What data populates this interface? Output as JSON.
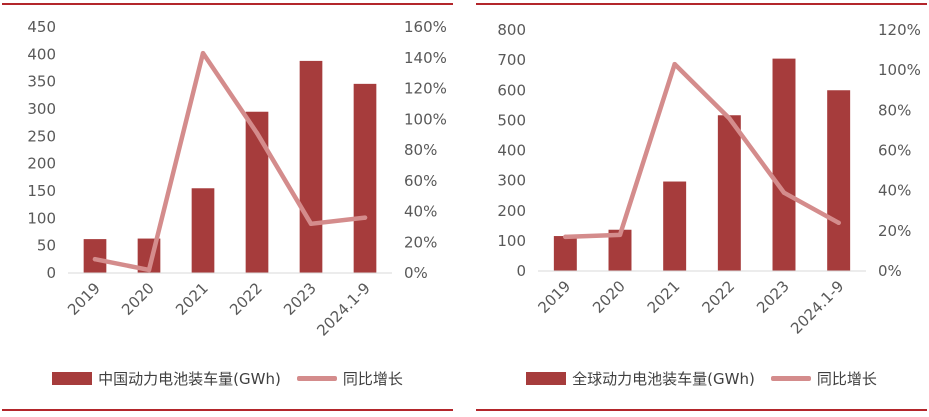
{
  "colors": {
    "bar": "#a63c3c",
    "line": "#d48c8c",
    "rule": "#b3262b",
    "axis": "#d9d9d9",
    "text": "#595959"
  },
  "chart_data": [
    {
      "type": "bar",
      "categories": [
        "2019",
        "2020",
        "2021",
        "2022",
        "2023",
        "2024.1-9"
      ],
      "series": [
        {
          "name": "中国动力电池装车量(GWh)",
          "type": "bar",
          "axis": "left",
          "values": [
            62,
            63,
            155,
            295,
            388,
            346
          ]
        },
        {
          "name": "同比增长",
          "type": "line",
          "axis": "right",
          "values": [
            0.09,
            0.02,
            1.43,
            0.91,
            0.32,
            0.36
          ]
        }
      ],
      "ylim": [
        0,
        450
      ],
      "yticks": [
        "0",
        "50",
        "100",
        "150",
        "200",
        "250",
        "300",
        "350",
        "400",
        "450"
      ],
      "y2lim": [
        0,
        1.6
      ],
      "y2ticks": [
        "0%",
        "20%",
        "40%",
        "60%",
        "80%",
        "100%",
        "120%",
        "140%",
        "160%"
      ],
      "legend": "bottom",
      "grid": false
    },
    {
      "type": "bar",
      "categories": [
        "2019",
        "2020",
        "2021",
        "2022",
        "2023",
        "2024.1-9"
      ],
      "series": [
        {
          "name": "全球动力电池装车量(GWh)",
          "type": "bar",
          "axis": "left",
          "values": [
            116,
            137,
            297,
            517,
            705,
            600
          ]
        },
        {
          "name": "同比增长",
          "type": "line",
          "axis": "right",
          "values": [
            0.17,
            0.18,
            1.03,
            0.76,
            0.39,
            0.24
          ]
        }
      ],
      "ylim": [
        0,
        800
      ],
      "yticks": [
        "0",
        "100",
        "200",
        "300",
        "400",
        "500",
        "600",
        "700",
        "800"
      ],
      "y2lim": [
        0,
        1.2
      ],
      "y2ticks": [
        "0%",
        "20%",
        "40%",
        "60%",
        "80%",
        "100%",
        "120%"
      ],
      "legend": "bottom",
      "grid": false
    }
  ]
}
